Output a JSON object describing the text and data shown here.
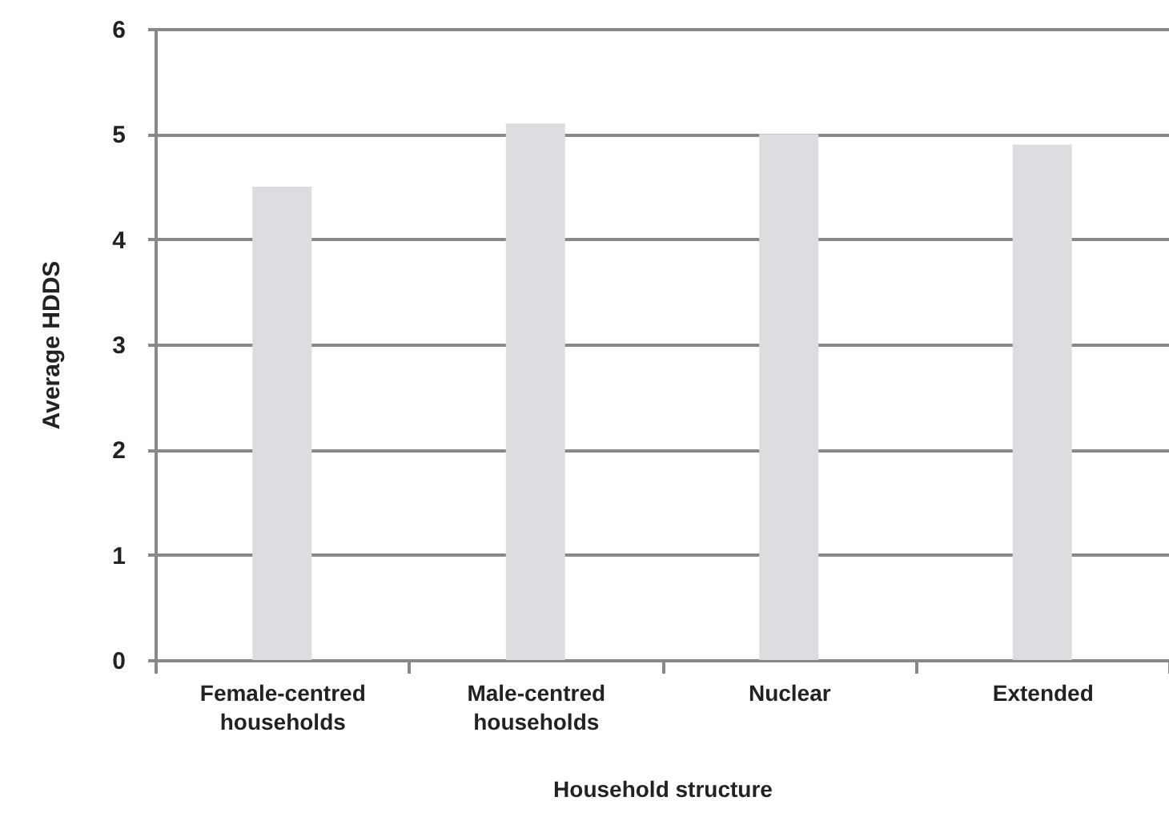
{
  "chart_data": {
    "type": "bar",
    "xlabel": "Household structure",
    "ylabel": "Average HDDS",
    "categories": [
      "Female-centred households",
      "Male-centred households",
      "Nuclear",
      "Extended"
    ],
    "values": [
      4.5,
      5.1,
      5.0,
      4.9
    ],
    "color": "#dcdde0",
    "ylim": [
      0,
      6
    ],
    "yticks": [
      0,
      1,
      2,
      3,
      4,
      5,
      6
    ],
    "grid": "y"
  }
}
